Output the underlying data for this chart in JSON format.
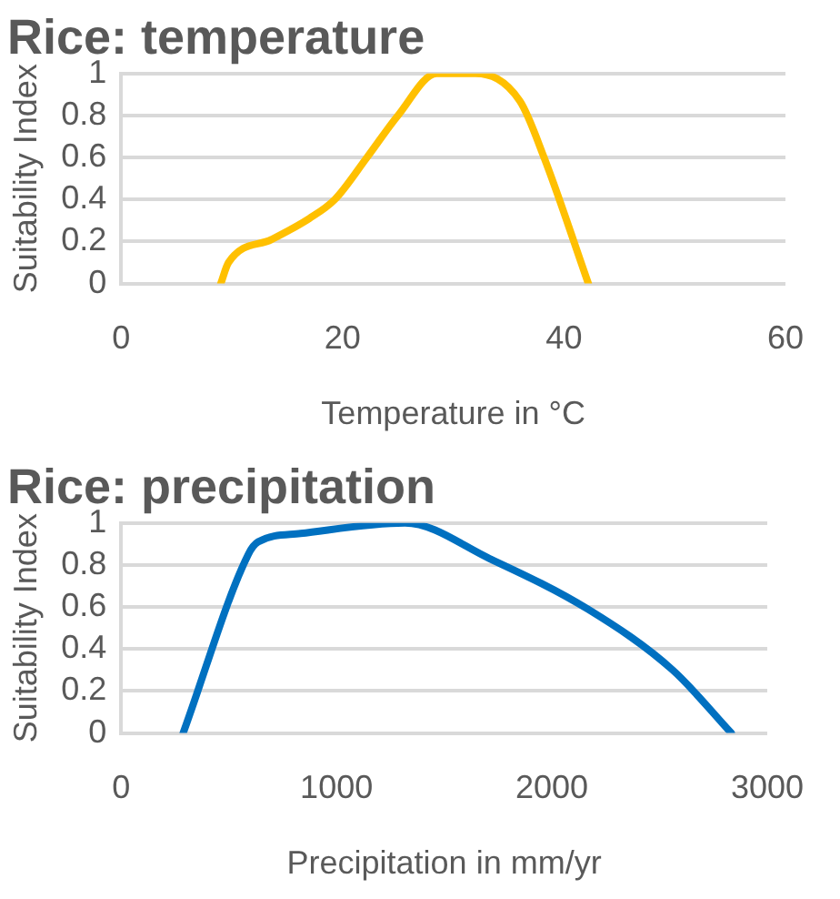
{
  "chart_data": [
    {
      "type": "line",
      "title": "Rice: temperature",
      "xlabel": "Temperature in °C",
      "ylabel": "Suitability Index",
      "x": [
        9,
        9.7,
        13.6,
        17,
        19.3,
        22.2,
        25,
        28.5,
        32,
        36,
        38.2,
        42.2
      ],
      "series": [
        {
          "color": "#ffc000",
          "values": [
            0,
            0.1,
            0.21,
            0.31,
            0.4,
            0.6,
            0.8,
            1,
            1,
            0.87,
            0.6,
            0
          ]
        }
      ],
      "xlim": [
        0,
        60
      ],
      "xticks": [
        0,
        20,
        40,
        60
      ],
      "ylim": [
        0,
        1
      ],
      "yticks": [
        0,
        0.2,
        0.4,
        0.6,
        0.8,
        1
      ],
      "grid": "y",
      "legend": false,
      "marker": "none",
      "line_style": "solid"
    },
    {
      "type": "line",
      "title": "Rice: precipitation",
      "xlabel": "Precipitation in mm/yr",
      "ylabel": "Suitability Index",
      "x": [
        288,
        590,
        636,
        833,
        1318,
        1712,
        2167,
        2561,
        2833
      ],
      "series": [
        {
          "color": "#0070c0",
          "values": [
            0,
            0.85,
            0.91,
            0.95,
            1,
            0.83,
            0.59,
            0.3,
            0
          ]
        }
      ],
      "xlim": [
        0,
        3000
      ],
      "xticks": [
        0,
        1000,
        2000,
        3000
      ],
      "ylim": [
        0,
        1
      ],
      "yticks": [
        0,
        0.2,
        0.4,
        0.6,
        0.8,
        1
      ],
      "grid": "y",
      "legend": false,
      "marker": "none",
      "line_style": "solid"
    }
  ]
}
